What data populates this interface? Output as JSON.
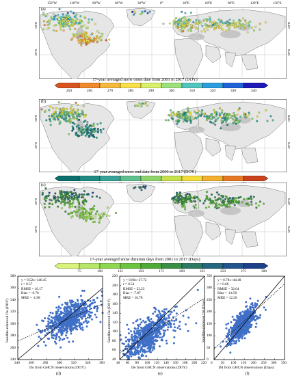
{
  "chart_data": [
    {
      "type": "map",
      "panel": "(a)",
      "colorbar_title": "17-year averaged snow onset date from 2001 to 2017 (DOY)",
      "colorbar_ticks": [
        "250",
        "260",
        "270",
        "280",
        "290",
        "300",
        "310",
        "320",
        "330",
        "340"
      ],
      "colors": [
        "#d9531e",
        "#f08a2c",
        "#f6b93c",
        "#f9e04a",
        "#d8f06a",
        "#9be27c",
        "#52c7c0",
        "#2a9fe0",
        "#1e63d8",
        "#1d1ab8"
      ],
      "lon_labels": [
        "150°W",
        "120°W",
        "90°W",
        "60°W",
        "30°W",
        "0°",
        "30°E",
        "60°E",
        "90°E",
        "120°E",
        "150°E"
      ],
      "lat_labels": [
        "60°N",
        "30°N"
      ]
    },
    {
      "type": "map",
      "panel": "(b)",
      "colorbar_title": "17-year averaged snow end date from 2000 to 2017 (DOY)",
      "colorbar_ticks": [
        "60",
        "70",
        "85",
        "100",
        "115",
        "130",
        "145",
        "160",
        "175",
        "190"
      ],
      "colors": [
        "#0b6e6e",
        "#1f8a82",
        "#37a39a",
        "#5fbf8d",
        "#8fd46b",
        "#c6e14d",
        "#f2dc3a",
        "#f3b02c",
        "#e67a24",
        "#c9431c"
      ],
      "lon_labels": [],
      "lat_labels": [
        "60°N",
        "30°N"
      ]
    },
    {
      "type": "map",
      "panel": "(c)",
      "colorbar_title": "17-year averaged snow duration days from 2001 to 2017 (Days)",
      "colorbar_ticks": [
        "75",
        "100",
        "125",
        "150",
        "175",
        "200",
        "225",
        "250",
        "275",
        "300"
      ],
      "colors": [
        "#d8f27a",
        "#b5e667",
        "#8ed84f",
        "#6bc43d",
        "#4faa3a",
        "#3a8e46",
        "#2c7a63",
        "#24687f",
        "#22558e",
        "#1e3f8a"
      ],
      "lon_labels": [],
      "lat_labels": [
        "60°N",
        "30°N"
      ]
    },
    {
      "type": "scatter",
      "panel": "(d)",
      "ylabel": "Satellite-retrieved Do (DOY)",
      "xlabel": "Do from GHCN observations (DOY)",
      "xlim": [
        240,
        360
      ],
      "ylim": [
        240,
        380
      ],
      "xticks": [
        240,
        260,
        280,
        300,
        320,
        340,
        360
      ],
      "yticks": [
        240,
        260,
        280,
        300,
        320,
        340,
        360,
        380
      ],
      "fit": {
        "slope": 0.52,
        "intercept": 146.45
      },
      "stats": [
        "y = 0.52x+146.45",
        "r = 0.57",
        "RMSE = 16.17",
        "Bias = -6.70",
        "MRE = -1.98"
      ],
      "cluster": {
        "x_center": 313,
        "y_center": 308,
        "x_sd": 17,
        "y_sd": 16,
        "n": 700
      }
    },
    {
      "type": "scatter",
      "panel": "(e)",
      "ylabel": "Satellite-retrieved De (DOY)",
      "xlabel": "De from GHCN observations (DOY)",
      "xlim": [
        40,
        220
      ],
      "ylim": [
        40,
        220
      ],
      "xticks": [
        40,
        60,
        80,
        100,
        120,
        140,
        160,
        180,
        200,
        220
      ],
      "yticks": [
        40,
        60,
        80,
        100,
        120,
        140,
        160,
        180,
        200,
        220
      ],
      "fit": {
        "slope": 0.66,
        "intercept": 27.72
      },
      "stats": [
        "y = 0.66x+27.72",
        "r = 0.54",
        "RMSE = 23.23",
        "Bias = -7.87",
        "MRE = 10.78"
      ],
      "cluster": {
        "x_center": 97,
        "y_center": 92,
        "x_sd": 25,
        "y_sd": 24,
        "n": 700
      }
    },
    {
      "type": "scatter",
      "panel": "(f)",
      "ylabel": "Satellite-retrieved Dd (Days)",
      "xlabel": "Dd from GHCN observations (Days)",
      "xlim": [
        0,
        350
      ],
      "ylim": [
        0,
        350
      ],
      "xticks": [
        0,
        50,
        100,
        150,
        200,
        250,
        300,
        350
      ],
      "yticks": [
        0,
        50,
        100,
        150,
        200,
        250,
        300,
        350
      ],
      "fit": {
        "slope": 0.78,
        "intercept": 44.4
      },
      "stats": [
        "y = 0.78x+44.40",
        "r = 0.66",
        "RMSE = 32.64",
        "Bias = -14.58",
        "MRE = 12.20"
      ],
      "cluster": {
        "x_center": 145,
        "y_center": 152,
        "x_sd": 35,
        "y_sd": 33,
        "n": 700
      }
    }
  ]
}
